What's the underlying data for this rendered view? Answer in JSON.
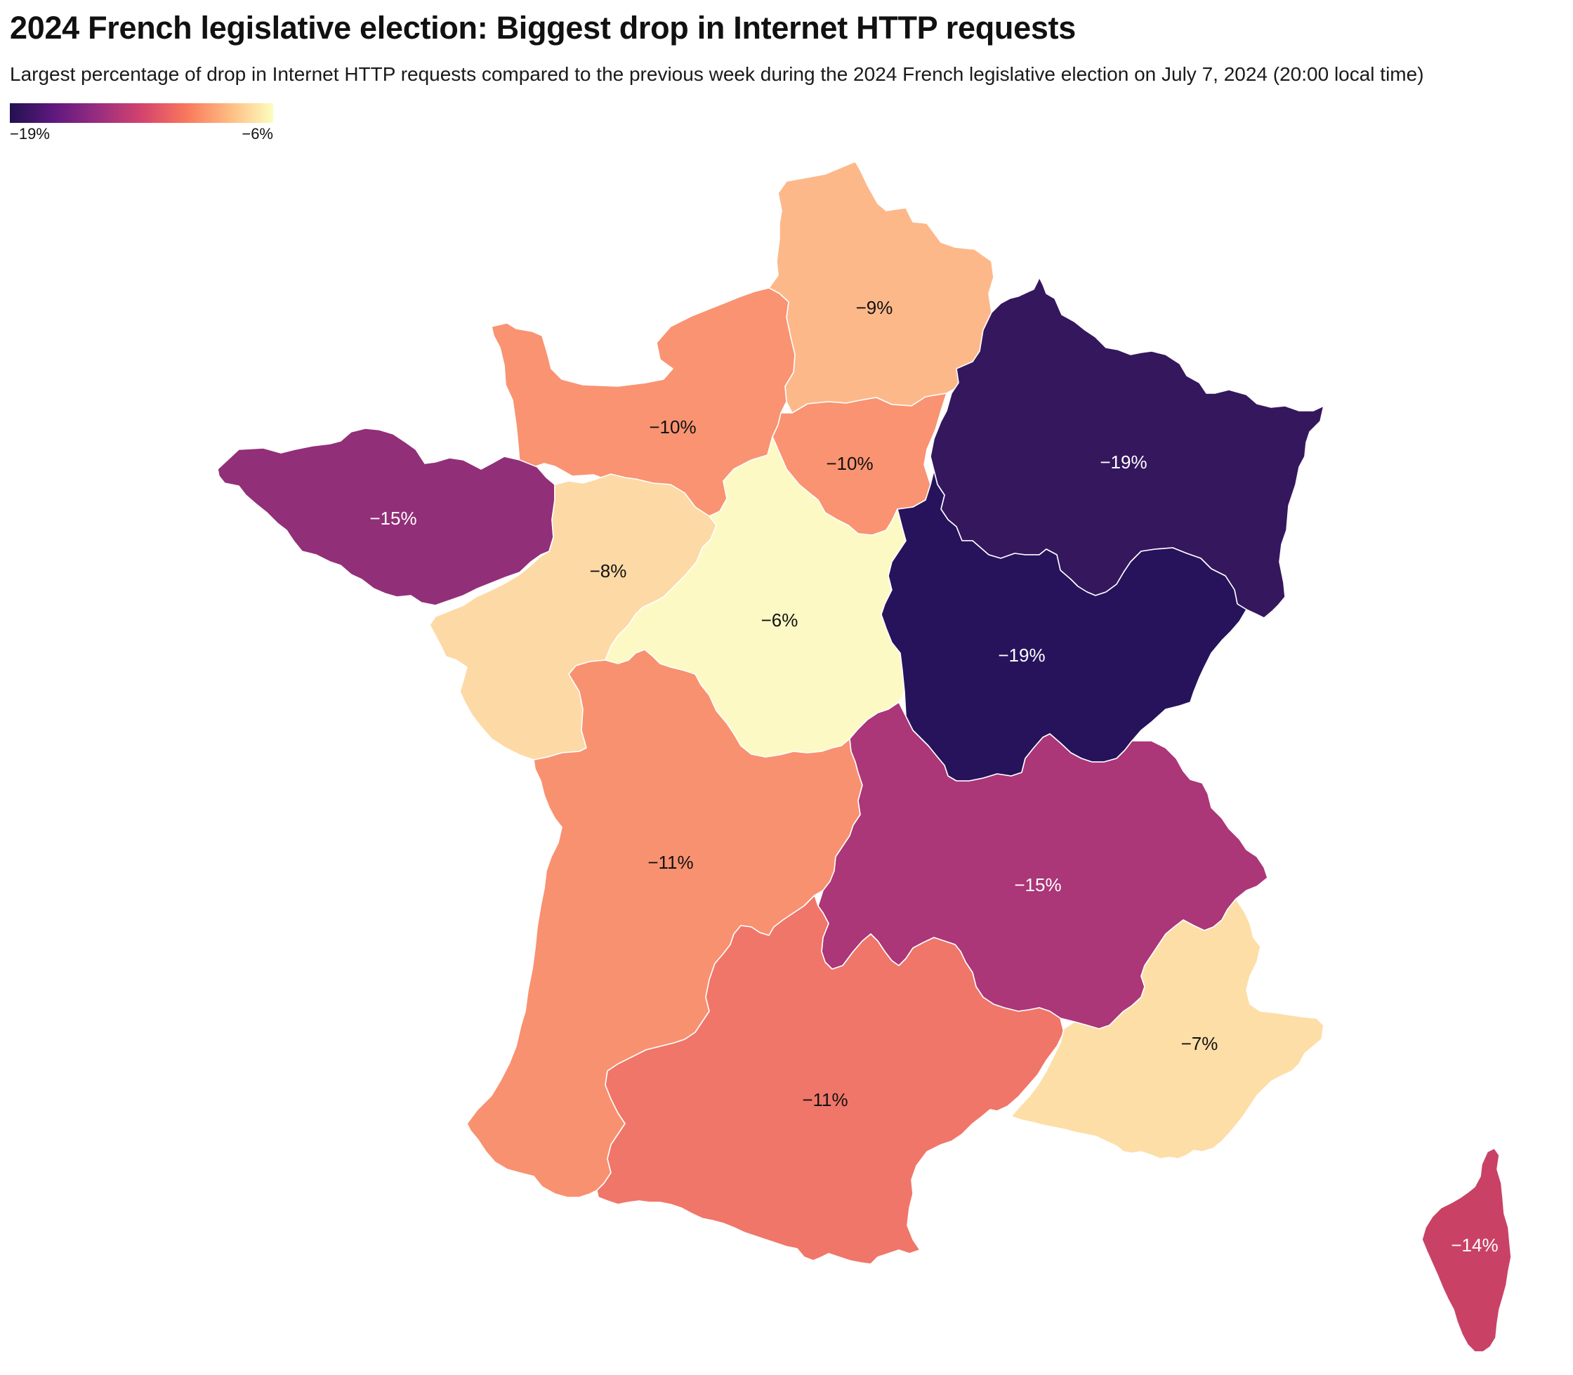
{
  "title": "2024 French legislative election: Biggest drop in Internet HTTP requests",
  "subtitle": "Largest percentage of drop in Internet HTTP requests compared to the previous week during the 2024 French legislative election on July 7, 2024 (20:00 local time)",
  "legend": {
    "min_label": "−19%",
    "max_label": "−6%",
    "gradient_colors": [
      "#221150",
      "#5f187f",
      "#982d80",
      "#d3436e",
      "#f8765c",
      "#febb81",
      "#fcfdbf"
    ]
  },
  "colors": {
    "region_border": "#ffffff"
  },
  "regions": [
    {
      "id": "hauts-de-france",
      "value": -9,
      "label": "−9%",
      "color": "#fdb88a"
    },
    {
      "id": "normandie",
      "value": -10,
      "label": "−10%",
      "color": "#f99371"
    },
    {
      "id": "ile-de-france",
      "value": -10,
      "label": "−10%",
      "color": "#f99371"
    },
    {
      "id": "grand-est",
      "value": -19,
      "label": "−19%",
      "color": "#35175e"
    },
    {
      "id": "bretagne",
      "value": -15,
      "label": "−15%",
      "color": "#922f79"
    },
    {
      "id": "pays-de-la-loire",
      "value": -8,
      "label": "−8%",
      "color": "#fdd9a5"
    },
    {
      "id": "centre-val-de-loire",
      "value": -6,
      "label": "−6%",
      "color": "#fcf9c4"
    },
    {
      "id": "bourgogne-franche-comte",
      "value": -19,
      "label": "−19%",
      "color": "#26135b"
    },
    {
      "id": "nouvelle-aquitaine",
      "value": -11,
      "label": "−11%",
      "color": "#f89170"
    },
    {
      "id": "auvergne-rhone-alpes",
      "value": -15,
      "label": "−15%",
      "color": "#ab3678"
    },
    {
      "id": "occitanie",
      "value": -11,
      "label": "−11%",
      "color": "#f07669"
    },
    {
      "id": "provence-alpes-cote-d-azur",
      "value": -7,
      "label": "−7%",
      "color": "#fddea7"
    },
    {
      "id": "corse",
      "value": -14,
      "label": "−14%",
      "color": "#c94266"
    }
  ]
}
